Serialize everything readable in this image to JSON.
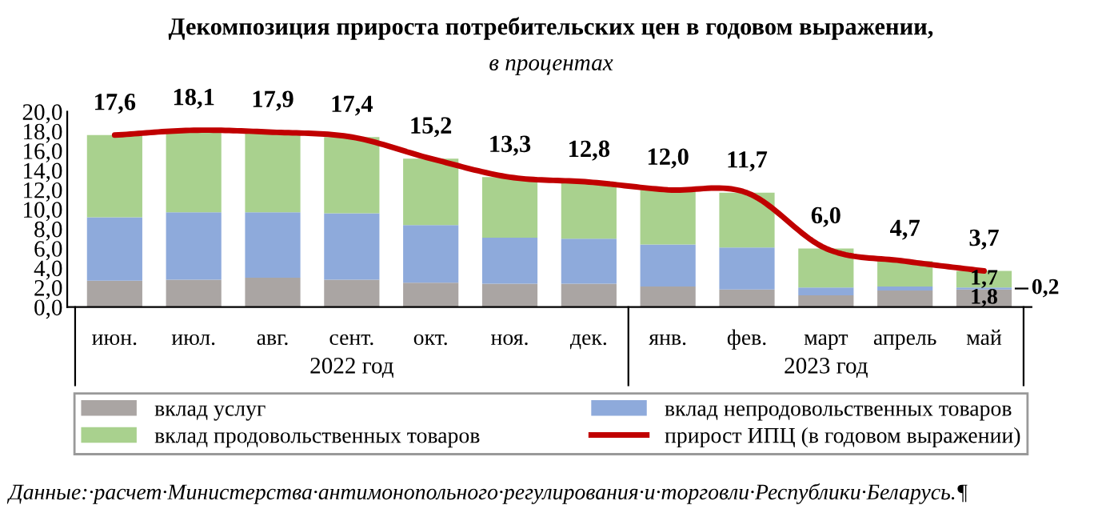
{
  "chart_data": {
    "type": "bar",
    "stacked": true,
    "title": "Декомпозиция прироста потребительских цен в годовом выражении,",
    "subtitle": "в процентах",
    "categories": [
      "июн.",
      "июл.",
      "авг.",
      "сент.",
      "окт.",
      "ноя.",
      "дек.",
      "янв.",
      "фев.",
      "март",
      "апрель",
      "май"
    ],
    "series": [
      {
        "name": "вклад услуг",
        "color": "#aaa5a3",
        "values": [
          2.7,
          2.8,
          3.0,
          2.8,
          2.5,
          2.4,
          2.4,
          2.1,
          1.8,
          1.2,
          1.7,
          1.8
        ],
        "value_labels": [
          null,
          null,
          null,
          null,
          null,
          null,
          null,
          null,
          null,
          null,
          null,
          "1,8"
        ]
      },
      {
        "name": "вклад непродовольственных товаров",
        "color": "#8eaadb",
        "values": [
          6.5,
          6.9,
          6.7,
          6.8,
          5.9,
          4.7,
          4.6,
          4.3,
          4.3,
          0.8,
          0.4,
          0.2
        ],
        "value_labels": [
          null,
          null,
          null,
          null,
          null,
          null,
          null,
          null,
          null,
          null,
          null,
          "0,2"
        ]
      },
      {
        "name": "вклад продовольственных товаров",
        "color": "#a9d18e",
        "values": [
          8.4,
          8.4,
          8.2,
          7.8,
          6.8,
          6.2,
          5.8,
          5.6,
          5.6,
          4.0,
          2.6,
          1.7
        ],
        "value_labels": [
          null,
          null,
          null,
          null,
          null,
          null,
          null,
          null,
          null,
          null,
          null,
          "1,7"
        ]
      },
      {
        "name": "прирост ИПЦ (в годовом выражении)",
        "type": "line",
        "color": "#c00000",
        "values": [
          17.6,
          18.1,
          17.9,
          17.4,
          15.2,
          13.3,
          12.8,
          12.0,
          11.7,
          6.0,
          4.7,
          3.7
        ],
        "value_labels": [
          "17,6",
          "18,1",
          "17,9",
          "17,4",
          "15,2",
          "13,3",
          "12,8",
          "12,0",
          "11,7",
          "6,0",
          "4,7",
          "3,7"
        ]
      }
    ],
    "ylim": [
      0,
      20
    ],
    "yticks": [
      {
        "value": 0,
        "label": "0,0"
      },
      {
        "value": 2,
        "label": "2,0"
      },
      {
        "value": 4,
        "label": "4,0"
      },
      {
        "value": 6,
        "label": "6,0"
      },
      {
        "value": 8,
        "label": "8,0"
      },
      {
        "value": 10,
        "label": "10,0"
      },
      {
        "value": 12,
        "label": "12,0"
      },
      {
        "value": 14,
        "label": "14,0"
      },
      {
        "value": 16,
        "label": "16,0"
      },
      {
        "value": 18,
        "label": "18,0"
      },
      {
        "value": 20,
        "label": "20,0"
      }
    ],
    "grid": false,
    "legend": "bottom",
    "line_style": "solid",
    "annotations": [
      "2022 год",
      "2023 год",
      "Данные:·расчет·Министерства·антимонопольного·регулирования·и·торговли·Республики·Беларусь.¶"
    ]
  }
}
